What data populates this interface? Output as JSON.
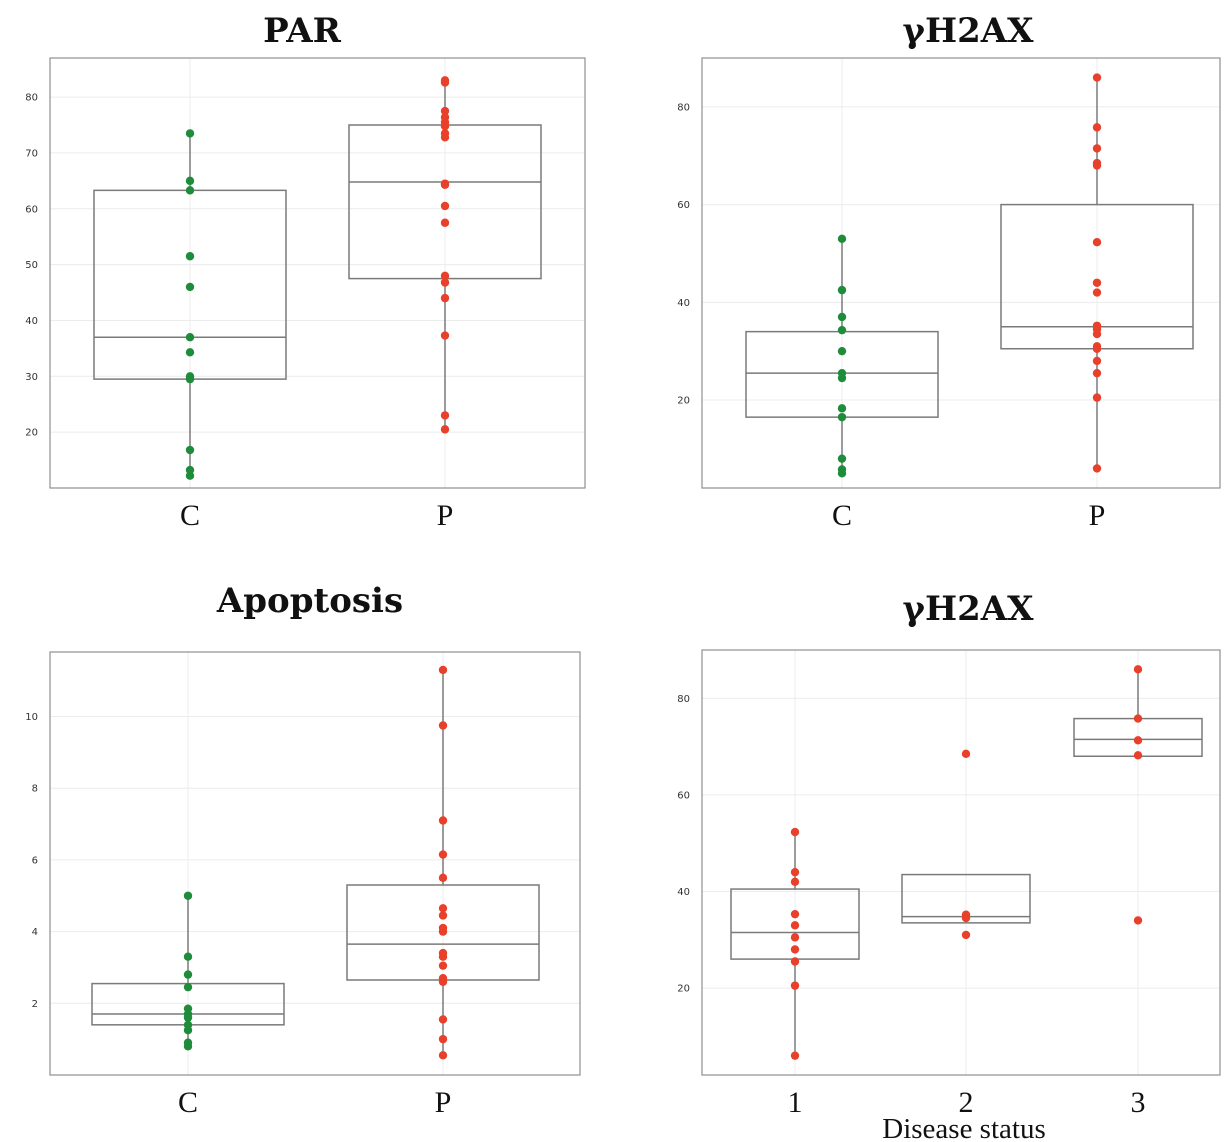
{
  "colors": {
    "control": "#1e8c3a",
    "patient": "#e8402a",
    "frame": "#8f8f8f",
    "box": "#7a7a7a",
    "grid": "#ececec"
  },
  "chart_data": [
    {
      "type": "box",
      "title": "PAR",
      "categories": [
        "C",
        "P"
      ],
      "ylim": [
        10,
        87
      ],
      "yticks": [
        20,
        30,
        40,
        50,
        60,
        70,
        80
      ],
      "boxes": [
        {
          "category": "C",
          "min": 12.2,
          "q1": 29.5,
          "median": 37,
          "q3": 63.3,
          "max": 73.5
        },
        {
          "category": "P",
          "min": 20.5,
          "q1": 47.5,
          "median": 64.8,
          "q3": 75,
          "max": 83
        }
      ],
      "points": [
        {
          "category": "C",
          "color": "control",
          "values": [
            73.5,
            65,
            63.3,
            51.5,
            46,
            37,
            34.3,
            30,
            29.5,
            16.8,
            13.2,
            12.2
          ]
        },
        {
          "category": "P",
          "color": "patient",
          "values": [
            83,
            82.6,
            77.5,
            76.4,
            75.5,
            74.8,
            73.5,
            72.8,
            64.5,
            64.3,
            60.5,
            57.5,
            48,
            46.8,
            44,
            37.3,
            23,
            20.5
          ]
        }
      ]
    },
    {
      "type": "box",
      "title": "γH2AX",
      "categories": [
        "C",
        "P"
      ],
      "ylim": [
        2,
        90
      ],
      "yticks": [
        20,
        40,
        60,
        80
      ],
      "boxes": [
        {
          "category": "C",
          "min": 5,
          "q1": 16.5,
          "median": 25.5,
          "q3": 34,
          "max": 53
        },
        {
          "category": "P",
          "min": 6,
          "q1": 30.5,
          "median": 35,
          "q3": 60,
          "max": 86
        }
      ],
      "points": [
        {
          "category": "C",
          "color": "control",
          "values": [
            53,
            42.5,
            37,
            34.3,
            30,
            25.5,
            24.5,
            18.3,
            16.5,
            8,
            5.8,
            5
          ]
        },
        {
          "category": "P",
          "color": "patient",
          "values": [
            86,
            75.8,
            71.5,
            68.5,
            68,
            52.3,
            44,
            42,
            35.2,
            34.5,
            33.5,
            31,
            30.5,
            28,
            25.5,
            20.5,
            6
          ]
        }
      ]
    },
    {
      "type": "box",
      "title": "Apoptosis",
      "categories": [
        "C",
        "P"
      ],
      "ylim": [
        0,
        11.8
      ],
      "yticks": [
        2,
        4,
        6,
        8,
        10
      ],
      "boxes": [
        {
          "category": "C",
          "min": 0.8,
          "q1": 1.4,
          "median": 1.7,
          "q3": 2.55,
          "max": 5
        },
        {
          "category": "P",
          "min": 0.55,
          "q1": 2.65,
          "median": 3.65,
          "q3": 5.3,
          "max": 11.3
        }
      ],
      "points": [
        {
          "category": "C",
          "color": "control",
          "values": [
            5,
            3.3,
            2.8,
            2.45,
            1.85,
            1.7,
            1.6,
            1.4,
            1.25,
            0.9,
            0.8
          ]
        },
        {
          "category": "P",
          "color": "patient",
          "values": [
            11.3,
            9.75,
            7.1,
            6.15,
            5.5,
            4.65,
            4.45,
            4.1,
            4.0,
            3.4,
            3.3,
            3.05,
            2.7,
            2.65,
            2.6,
            1.55,
            1.0,
            0.55
          ]
        }
      ]
    },
    {
      "type": "box",
      "title": "γH2AX",
      "xlabel": "Disease status",
      "categories": [
        "1",
        "2",
        "3"
      ],
      "ylim": [
        2,
        90
      ],
      "yticks": [
        20,
        40,
        60,
        80
      ],
      "boxes": [
        {
          "category": "1",
          "min": 6,
          "q1": 26,
          "median": 31.5,
          "q3": 40.5,
          "max": 52.3
        },
        {
          "category": "2",
          "min": 33.5,
          "q1": 33.5,
          "median": 34.8,
          "q3": 43.5,
          "max": 43.5
        },
        {
          "category": "3",
          "min": 68,
          "q1": 68,
          "median": 71.5,
          "q3": 75.8,
          "max": 86
        }
      ],
      "points": [
        {
          "category": "1",
          "color": "patient",
          "values": [
            52.3,
            44,
            42,
            35.3,
            33,
            30.5,
            28,
            25.5,
            20.5,
            6
          ]
        },
        {
          "category": "2",
          "color": "patient",
          "values": [
            68.5,
            35.2,
            34.5,
            31
          ]
        },
        {
          "category": "3",
          "color": "patient",
          "values": [
            86,
            75.8,
            71.3,
            68.2,
            34
          ]
        }
      ]
    }
  ]
}
